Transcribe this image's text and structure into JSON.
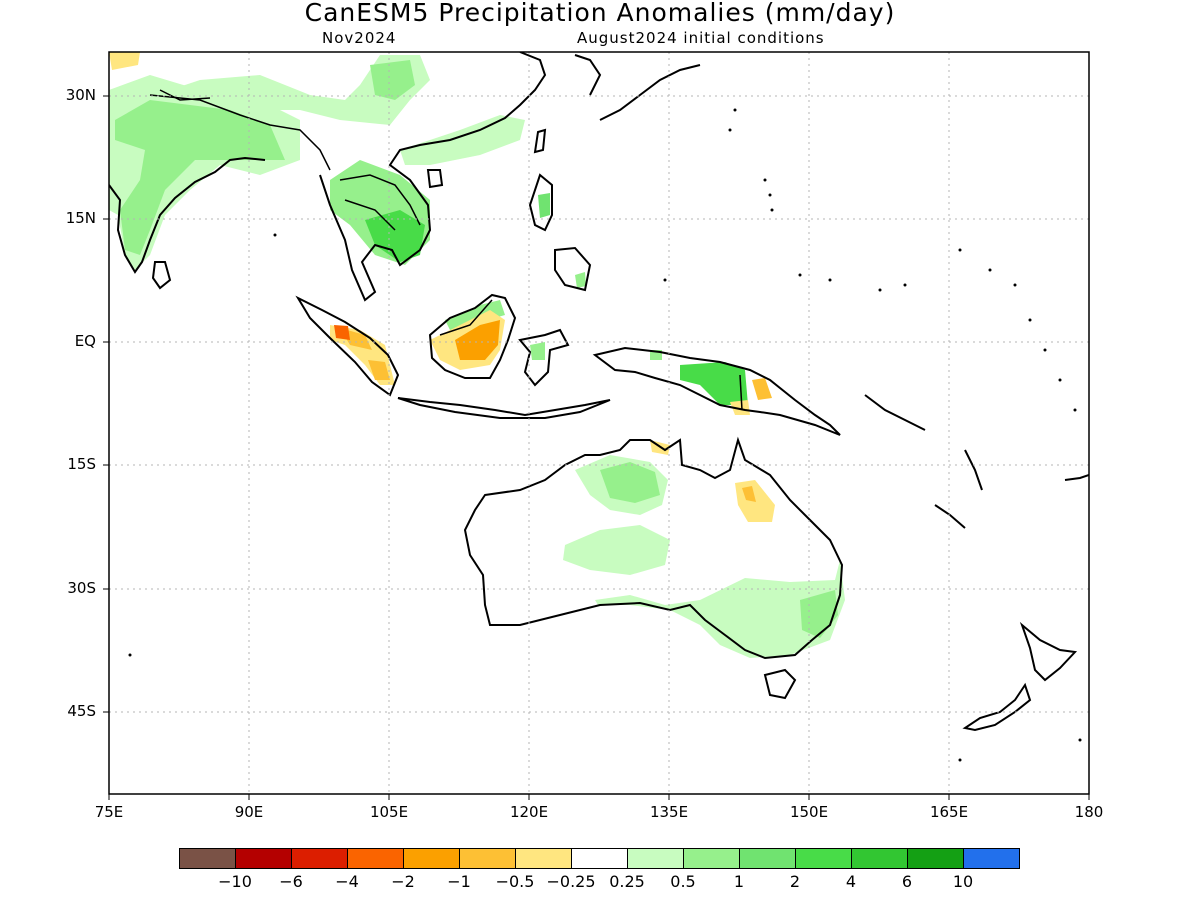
{
  "title": "CanESM5 Precipitation Anomalies (mm/day)",
  "subtitle_left": "Nov2024",
  "subtitle_right": "August2024 initial conditions",
  "lat_labels": [
    "30N",
    "15N",
    "EQ",
    "15S",
    "30S",
    "45S"
  ],
  "lon_labels": [
    "75E",
    "90E",
    "105E",
    "120E",
    "135E",
    "150E",
    "165E",
    "180"
  ],
  "colorbar": {
    "colors": [
      "#7a5246",
      "#b40000",
      "#dc1e00",
      "#fa6400",
      "#fba000",
      "#fdc034",
      "#ffe680",
      "#ffffff",
      "#c8fcc0",
      "#96f08c",
      "#70e370",
      "#48dc48",
      "#32c632",
      "#14a014",
      "#2270ec"
    ],
    "labels": [
      "−10",
      "−6",
      "−4",
      "−2",
      "−1",
      "−0.5",
      "−0.25",
      "0.25",
      "0.5",
      "1",
      "2",
      "4",
      "6",
      "10"
    ]
  },
  "map": {
    "region": "75E-180, 52S-36N",
    "anomalies": [
      {
        "region": "India",
        "sign": "positive",
        "level": "0.5-2"
      },
      {
        "region": "Tibet / Himalaya",
        "sign": "positive",
        "level": "0.5-1"
      },
      {
        "region": "South China",
        "sign": "positive",
        "level": "0.5-1"
      },
      {
        "region": "Indochina",
        "sign": "positive",
        "level": "1-4"
      },
      {
        "region": "Philippines",
        "sign": "positive",
        "level": "0.5-2"
      },
      {
        "region": "Sumatra",
        "sign": "negative",
        "level": "-0.5 to -4"
      },
      {
        "region": "Borneo",
        "sign": "negative",
        "level": "-0.5 to -2"
      },
      {
        "region": "New Guinea",
        "sign": "positive",
        "level": "1-4"
      },
      {
        "region": "Northern Australia",
        "sign": "positive",
        "level": "0.25-1"
      },
      {
        "region": "Queensland",
        "sign": "negative",
        "level": "-0.25 to -1"
      },
      {
        "region": "Southeast Australia",
        "sign": "positive",
        "level": "0.25-1"
      }
    ]
  }
}
